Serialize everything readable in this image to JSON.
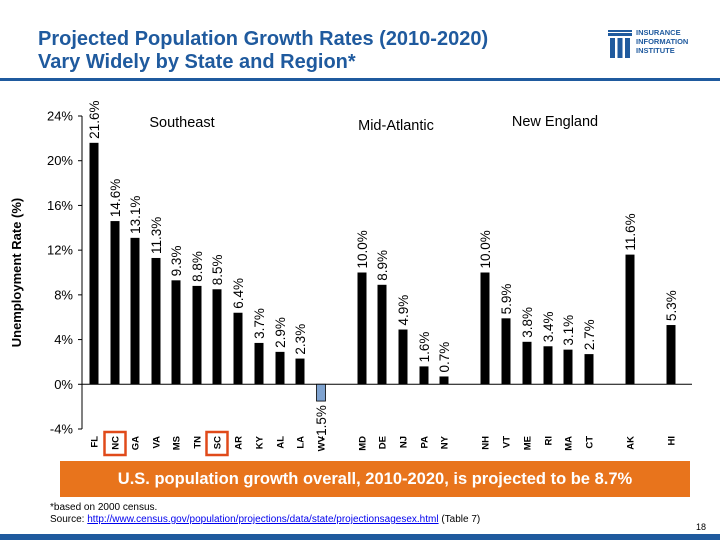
{
  "slide": {
    "title_line1": "Projected Population Growth Rates (2010-2020)",
    "title_line2": "Vary Widely by State and Region*",
    "logo_line1": "INSURANCE",
    "logo_line2": "INFORMATION",
    "logo_line3": "INSTITUTE",
    "banner": "U.S. population growth overall, 2010-2020, is projected to be 8.7%",
    "footnote": "*based on 2000 census.",
    "source_label": "Source: ",
    "source_url": "http://www.census.gov/population/projections/data/state/projectionsagesex.html",
    "source_suffix": " (Table 7)",
    "page_number": "18"
  },
  "colors": {
    "title": "#1f5a9e",
    "bar": "#000000",
    "negative_bar": "#7fa3d0",
    "banner": "#e8741c",
    "highlight_box": "#e04a1a"
  },
  "chart_data": {
    "type": "bar",
    "title": "",
    "xlabel": "",
    "ylabel": "Unemployment Rate (%)",
    "ylim": [
      -4,
      24
    ],
    "yticks": [
      -4,
      0,
      4,
      8,
      12,
      16,
      20,
      24
    ],
    "ytick_labels": [
      "-4%",
      "0%",
      "4%",
      "8%",
      "12%",
      "16%",
      "20%",
      "24%"
    ],
    "categories": [
      "FL",
      "NC",
      "GA",
      "VA",
      "MS",
      "TN",
      "SC",
      "AR",
      "KY",
      "AL",
      "LA",
      "WV",
      "MD",
      "DE",
      "NJ",
      "PA",
      "NY",
      "NH",
      "VT",
      "ME",
      "RI",
      "MA",
      "CT",
      "AK",
      "HI"
    ],
    "values": [
      21.6,
      14.6,
      13.1,
      11.3,
      9.3,
      8.8,
      8.5,
      6.4,
      3.7,
      2.9,
      2.3,
      -1.5,
      10.0,
      8.9,
      4.9,
      1.6,
      0.7,
      10.0,
      5.9,
      3.8,
      3.4,
      3.1,
      2.7,
      11.6,
      5.3
    ],
    "value_labels": [
      "21.6%",
      "14.6%",
      "13.1%",
      "11.3%",
      "9.3%",
      "8.8%",
      "8.5%",
      "6.4%",
      "3.7%",
      "2.9%",
      "2.3%",
      "-1.5%",
      "10.0%",
      "8.9%",
      "4.9%",
      "1.6%",
      "0.7%",
      "10.0%",
      "5.9%",
      "3.8%",
      "3.4%",
      "3.1%",
      "2.7%",
      "11.6%",
      "5.3%"
    ],
    "highlighted": [
      "NC",
      "SC"
    ],
    "region_labels": [
      "Southeast",
      "Mid-Atlantic",
      "New England"
    ]
  }
}
